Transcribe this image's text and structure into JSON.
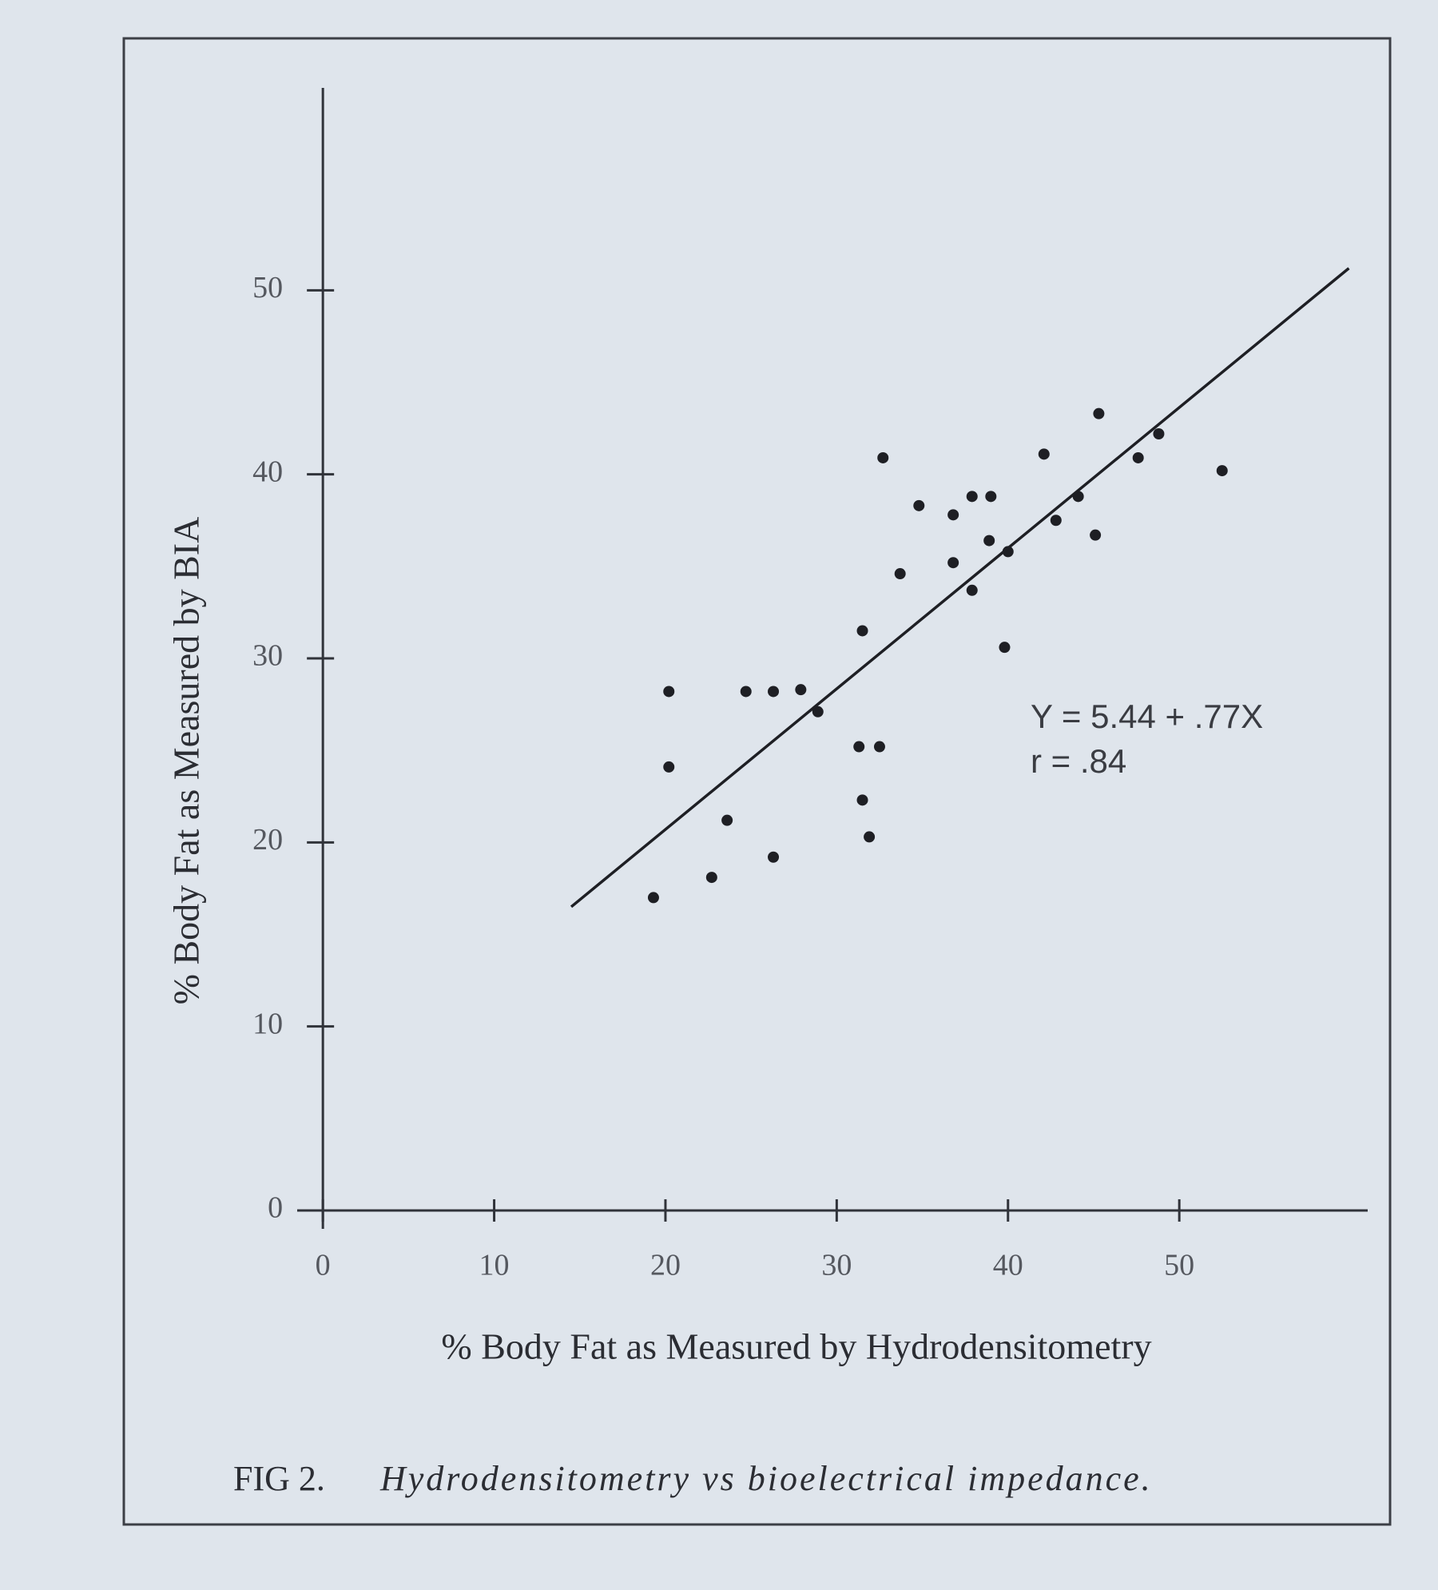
{
  "chart_data": {
    "type": "scatter",
    "x_label": "% Body Fat as Measured by Hydrodensitometry",
    "y_label": "% Body Fat as Measured by BIA",
    "xlim": [
      -1.5,
      61
    ],
    "ylim": [
      -1,
      61
    ],
    "xticks": [
      0,
      10,
      20,
      30,
      40,
      50
    ],
    "yticks": [
      0,
      10,
      20,
      30,
      40,
      50
    ],
    "series": [
      {
        "type": "scatter",
        "color": "#1e1f24",
        "x": [
          19.3,
          20.2,
          20.2,
          22.7,
          23.6,
          24.7,
          26.3,
          27.9,
          26.3,
          28.9,
          31.5,
          31.3,
          32.5,
          31.5,
          31.9,
          32.7,
          33.7,
          34.8,
          36.8,
          36.8,
          37.9,
          39.0,
          38.9,
          37.9,
          39.8,
          40.0,
          42.1,
          42.8,
          44.1,
          45.1,
          45.3,
          47.6,
          48.8,
          52.5
        ],
        "values": [
          17.0,
          28.2,
          24.1,
          18.1,
          21.2,
          28.2,
          28.2,
          28.3,
          19.2,
          27.1,
          31.5,
          25.2,
          25.2,
          22.3,
          20.3,
          40.9,
          34.6,
          38.3,
          37.8,
          35.2,
          38.8,
          38.8,
          36.4,
          33.7,
          30.6,
          35.8,
          41.1,
          37.5,
          38.8,
          36.7,
          43.3,
          40.9,
          42.2,
          40.2
        ]
      },
      {
        "type": "line",
        "color": "#1e1f24",
        "x": [
          14.5,
          59.9
        ],
        "values": [
          16.5,
          51.2
        ]
      }
    ],
    "annotations": [
      "Y = 5.44 + .77X",
      "r = .84"
    ],
    "caption": {
      "label": "FIG 2.",
      "text": "Hydrodensitometry vs bioelectrical impedance."
    }
  }
}
